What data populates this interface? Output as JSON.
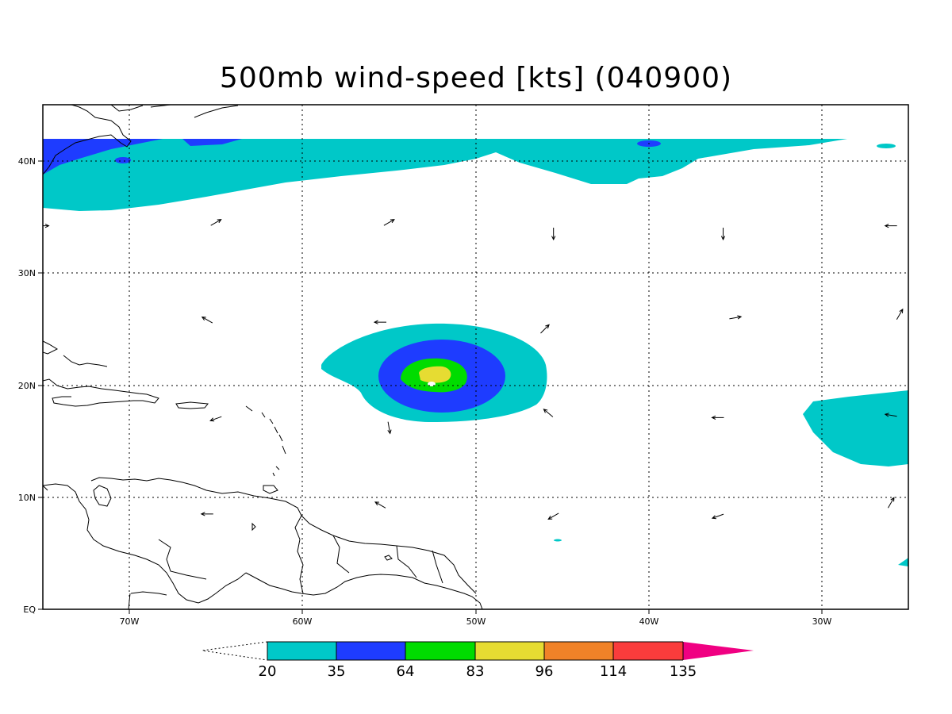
{
  "title": "500mb wind-speed [kts] (040900)",
  "chart_data": {
    "type": "heatmap",
    "title": "500mb wind-speed [kts] (040900)",
    "units": "kts",
    "lon_range": [
      -75,
      -25
    ],
    "lat_range": [
      0,
      45
    ],
    "lon_ticks": [
      {
        "value": -70,
        "label": "70W"
      },
      {
        "value": -60,
        "label": "60W"
      },
      {
        "value": -50,
        "label": "50W"
      },
      {
        "value": -40,
        "label": "40W"
      },
      {
        "value": -30,
        "label": "30W"
      }
    ],
    "lat_ticks": [
      {
        "value": 0,
        "label": "EQ"
      },
      {
        "value": 10,
        "label": "10N"
      },
      {
        "value": 20,
        "label": "20N"
      },
      {
        "value": 30,
        "label": "30N"
      },
      {
        "value": 40,
        "label": "40N"
      }
    ],
    "grid": true,
    "levels": [
      {
        "label": "20",
        "color": "#00c8c8"
      },
      {
        "label": "35",
        "color": "#1e3cff"
      },
      {
        "label": "64",
        "color": "#00dc00"
      },
      {
        "label": "83",
        "color": "#e6dc32"
      },
      {
        "label": "96",
        "color": "#f08228"
      },
      {
        "label": "114",
        "color": "#fa3c3c"
      },
      {
        "label": "135",
        "color": "#f00082"
      }
    ],
    "features": [
      {
        "name": "hurricane-core",
        "center_lon": -52.5,
        "center_lat": 20.2,
        "max_level": "83"
      },
      {
        "name": "northern-jet",
        "lat_span": [
          36,
          42
        ],
        "level": "20"
      },
      {
        "name": "eastern-band",
        "center_lon": -27,
        "center_lat": 17,
        "level": "20"
      }
    ],
    "wind_vectors": [
      {
        "lon": -75,
        "lat": 34.2,
        "dir": 90
      },
      {
        "lon": -65,
        "lat": 34.5,
        "dir": 60
      },
      {
        "lon": -55,
        "lat": 34.5,
        "dir": 60
      },
      {
        "lon": -45.5,
        "lat": 33.5,
        "dir": 180
      },
      {
        "lon": -35.7,
        "lat": 33.5,
        "dir": 180
      },
      {
        "lon": -26,
        "lat": 34.2,
        "dir": 270
      },
      {
        "lon": -65.5,
        "lat": 25.8,
        "dir": 300
      },
      {
        "lon": -55.5,
        "lat": 25.6,
        "dir": 270
      },
      {
        "lon": -46,
        "lat": 25,
        "dir": 45
      },
      {
        "lon": -35,
        "lat": 26,
        "dir": 80
      },
      {
        "lon": -25.5,
        "lat": 26.3,
        "dir": 30
      },
      {
        "lon": -55,
        "lat": 16.2,
        "dir": 170
      },
      {
        "lon": -45.8,
        "lat": 17.5,
        "dir": 310
      },
      {
        "lon": -36,
        "lat": 17.1,
        "dir": 270
      },
      {
        "lon": -26,
        "lat": 17.3,
        "dir": 280
      },
      {
        "lon": -65,
        "lat": 17,
        "dir": 250
      },
      {
        "lon": -65.5,
        "lat": 8.5,
        "dir": 270
      },
      {
        "lon": -55.5,
        "lat": 9.3,
        "dir": 300
      },
      {
        "lon": -45.5,
        "lat": 8.3,
        "dir": 240
      },
      {
        "lon": -36,
        "lat": 8.3,
        "dir": 250
      },
      {
        "lon": -26,
        "lat": 9.5,
        "dir": 30
      }
    ]
  }
}
